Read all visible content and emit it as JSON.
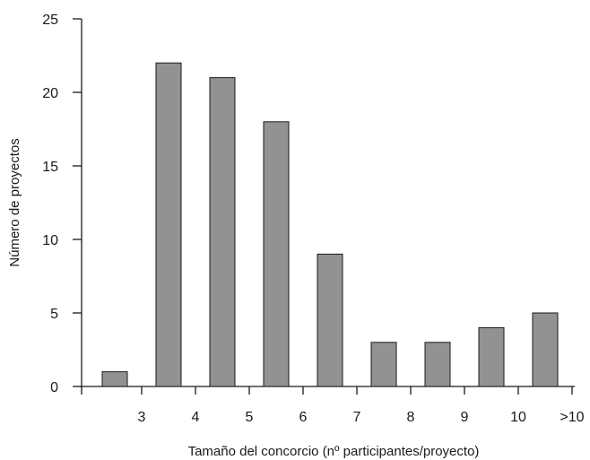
{
  "chart_data": {
    "type": "bar",
    "categories": [
      "3",
      "4",
      "5",
      "6",
      "7",
      "8",
      "9",
      "10",
      ">10"
    ],
    "values": [
      1,
      22,
      21,
      18,
      9,
      3,
      3,
      4,
      5
    ],
    "title": "",
    "xlabel": "Tamaño del concorcio (nº participantes/proyecto)",
    "ylabel": "Número de proyectos",
    "ylim": [
      0,
      25
    ],
    "yticks": [
      "0",
      "5",
      "10",
      "15",
      "20",
      "25"
    ],
    "grid": false,
    "bar_color": "#929292",
    "bar_edge_color": "#1a1a1a",
    "axis_color": "#1a1a1a"
  }
}
